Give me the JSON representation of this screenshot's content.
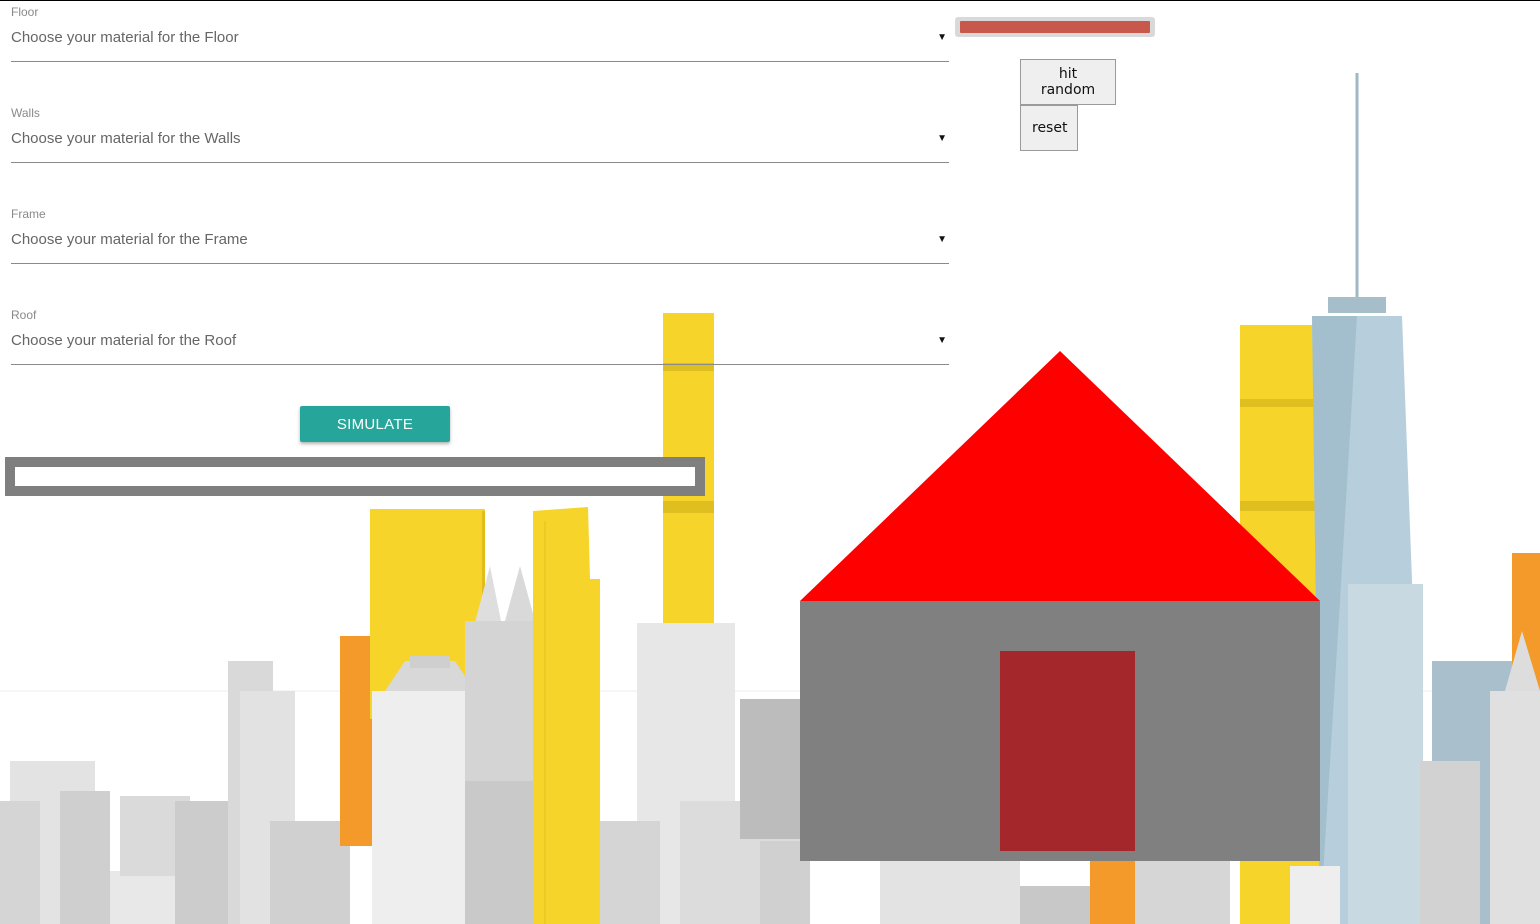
{
  "form": {
    "fields": [
      {
        "label": "Floor",
        "placeholder": "Choose your material for the Floor"
      },
      {
        "label": "Walls",
        "placeholder": "Choose your material for the Walls"
      },
      {
        "label": "Frame",
        "placeholder": "Choose your material for the Frame"
      },
      {
        "label": "Roof",
        "placeholder": "Choose your material for the Roof"
      }
    ],
    "dropdown_icon": "triangle-down-icon",
    "simulate_label": "SIMULATE"
  },
  "simulation": {
    "progress": 0
  },
  "controls": {
    "health": 1.0,
    "hit_random_label": "hit random",
    "reset_label": "reset"
  },
  "house": {
    "roof_color": "#ff0000",
    "wall_color": "#808080",
    "door_color": "#a4282b"
  },
  "colors": {
    "accent": "#26a69a",
    "health": "#c8574c",
    "building_yellow": "#f6d42a",
    "building_orange": "#f39a2a"
  }
}
